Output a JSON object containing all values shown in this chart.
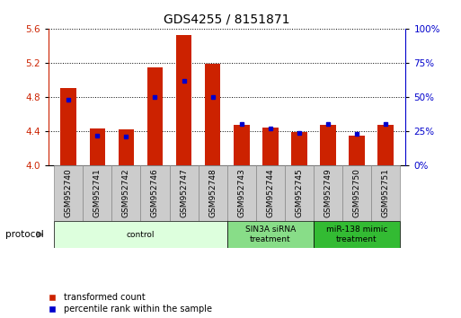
{
  "title": "GDS4255 / 8151871",
  "samples": [
    "GSM952740",
    "GSM952741",
    "GSM952742",
    "GSM952746",
    "GSM952747",
    "GSM952748",
    "GSM952743",
    "GSM952744",
    "GSM952745",
    "GSM952749",
    "GSM952750",
    "GSM952751"
  ],
  "red_values": [
    4.9,
    4.43,
    4.42,
    5.15,
    5.53,
    5.19,
    4.47,
    4.44,
    4.39,
    4.47,
    4.35,
    4.47
  ],
  "blue_values": [
    48,
    22,
    21,
    50,
    62,
    50,
    30,
    27,
    24,
    30,
    23,
    30
  ],
  "ylim_left": [
    4.0,
    5.6
  ],
  "ylim_right": [
    0,
    100
  ],
  "yticks_left": [
    4.0,
    4.4,
    4.8,
    5.2,
    5.6
  ],
  "yticks_right": [
    0,
    25,
    50,
    75,
    100
  ],
  "ytick_labels_right": [
    "0%",
    "25%",
    "50%",
    "75%",
    "100%"
  ],
  "bar_color": "#cc2200",
  "dot_color": "#0000cc",
  "bar_width": 0.55,
  "groups": [
    {
      "label": "control",
      "start": 0,
      "end": 6,
      "color": "#ddffdd"
    },
    {
      "label": "SIN3A siRNA\ntreatment",
      "start": 6,
      "end": 9,
      "color": "#88dd88"
    },
    {
      "label": "miR-138 mimic\ntreatment",
      "start": 9,
      "end": 12,
      "color": "#33bb33"
    }
  ],
  "legend_red": "transformed count",
  "legend_blue": "percentile rank within the sample",
  "protocol_label": "protocol",
  "bg_color": "#ffffff",
  "title_fontsize": 10,
  "tick_fontsize": 7.5,
  "bar_baseline": 4.0,
  "sample_box_color": "#cccccc",
  "sample_box_edge": "#888888"
}
